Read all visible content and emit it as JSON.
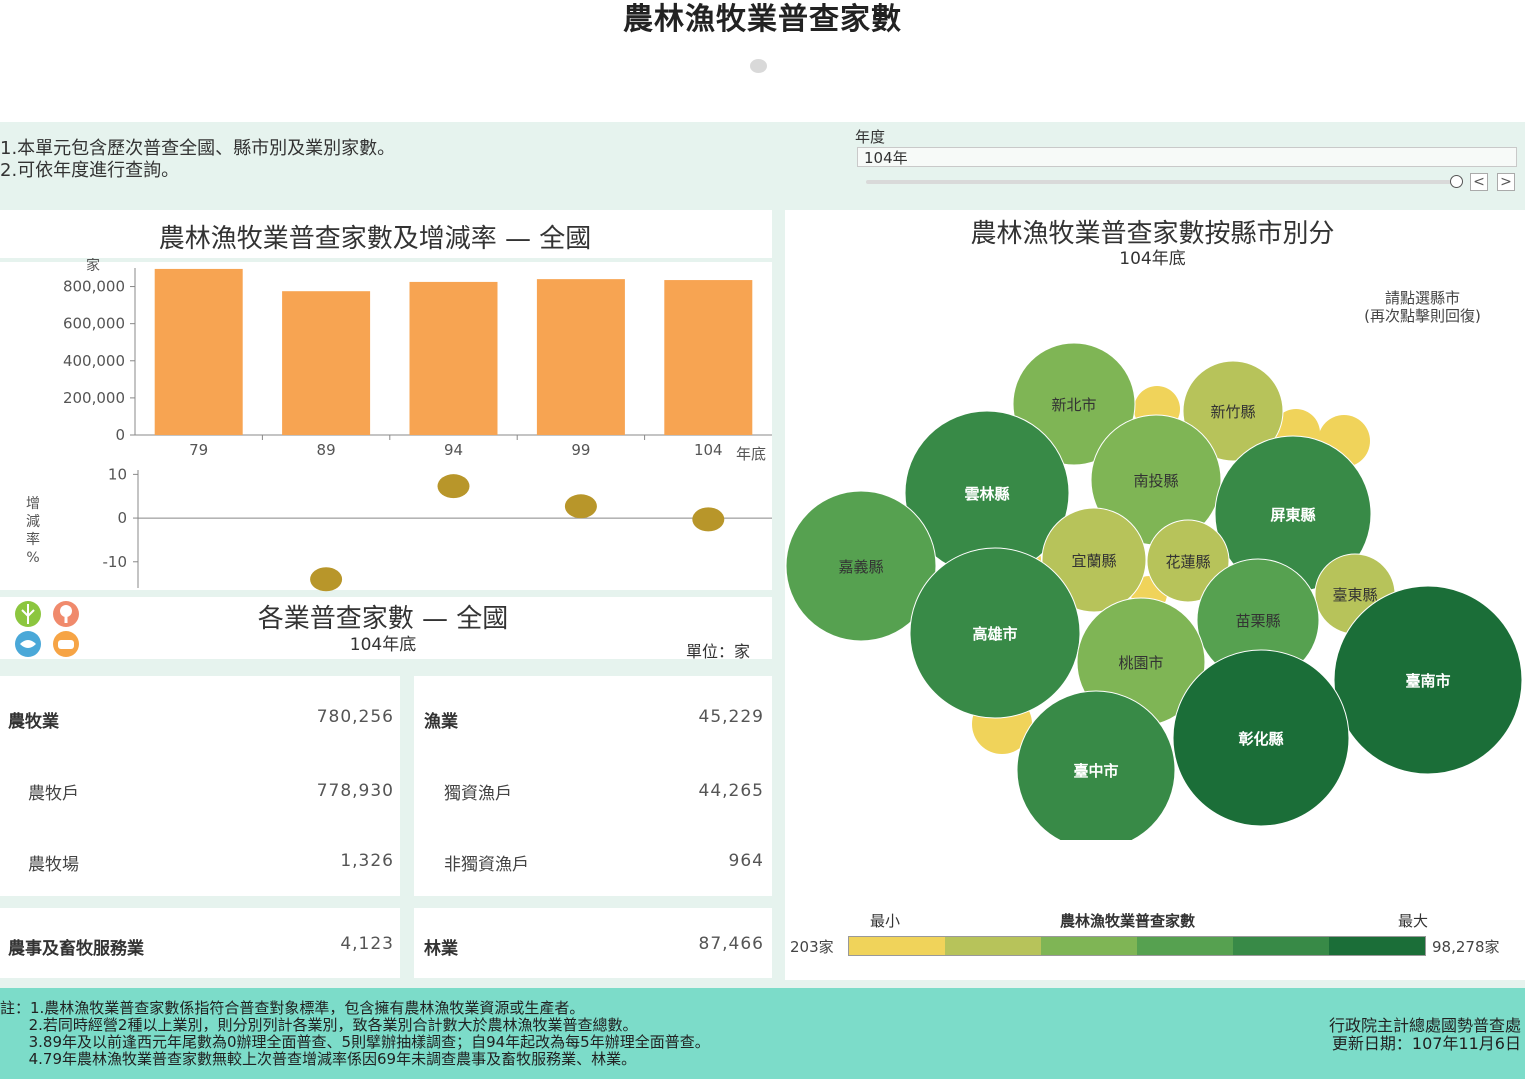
{
  "page": {
    "title": "農林漁牧業普查家數"
  },
  "intro": {
    "line1": "1.本單元包含歷次普查全國、縣市別及業別家數。",
    "line2": "2.可依年度進行查詢。"
  },
  "filter": {
    "label": "年度",
    "value": "104年",
    "prev_label": "<",
    "next_label": ">"
  },
  "bar_chart": {
    "title": "農林漁牧業普查家數及增減率 — 全國",
    "unit_label": "家",
    "x_suffix": "年底",
    "rate_axis_label": [
      "增",
      "減",
      "率",
      "%"
    ]
  },
  "chart_data": [
    {
      "type": "bar",
      "categories": [
        "79",
        "89",
        "94",
        "99",
        "104"
      ],
      "values": [
        895000,
        775000,
        825000,
        840000,
        835000
      ],
      "ylabel": "家",
      "ylim": [
        0,
        900000
      ],
      "yticks": [
        "0",
        "200,000",
        "400,000",
        "600,000",
        "800,000"
      ],
      "color": "#f7a452"
    },
    {
      "type": "scatter",
      "categories": [
        "89",
        "94",
        "99",
        "104"
      ],
      "values": [
        -14,
        7.3,
        2.7,
        -0.3
      ],
      "ylabel": "增減率%",
      "ylim": [
        -16,
        11
      ],
      "yticks": [
        "-10",
        "0",
        "10"
      ],
      "color": "#b8962a"
    },
    {
      "type": "bubble",
      "title": "農林漁牧業普查家數按縣市別分",
      "subtitle": "104年底",
      "min": 203,
      "max": 98278,
      "labels": [
        "新北市",
        "新竹縣",
        "雲林縣",
        "南投縣",
        "屏東縣",
        "嘉義縣",
        "宜蘭縣",
        "花蓮縣",
        "臺東縣",
        "高雄市",
        "苗栗縣",
        "桃園市",
        "臺南市",
        "臺中市",
        "彰化縣"
      ]
    }
  ],
  "bubble_map": {
    "title": "農林漁牧業普查家數按縣市別分",
    "subtitle": "104年底",
    "hint_line1": "請點選縣市",
    "hint_line2": "(再次點擊則回復)",
    "legend": {
      "min_label": "最小",
      "center_label": "農林漁牧業普查家數",
      "max_label": "最大",
      "min_value": "203家",
      "max_value": "98,278家"
    },
    "colors": [
      "#f0d35a",
      "#b7c35a",
      "#7fb555",
      "#56a150",
      "#388a47",
      "#1b6e38"
    ]
  },
  "industry": {
    "title": "各業普查家數 — 全國",
    "subtitle": "104年底",
    "unit": "單位：家",
    "agri": {
      "label": "農牧業",
      "value": "780,256",
      "sub1_label": "農牧戶",
      "sub1_value": "778,930",
      "sub2_label": "農牧場",
      "sub2_value": "1,326"
    },
    "fish": {
      "label": "漁業",
      "value": "45,229",
      "sub1_label": "獨資漁戶",
      "sub1_value": "44,265",
      "sub2_label": "非獨資漁戶",
      "sub2_value": "964"
    },
    "service": {
      "label": "農事及畜牧服務業",
      "value": "4,123"
    },
    "forest": {
      "label": "林業",
      "value": "87,466"
    }
  },
  "footer": {
    "notes": "註：1.農林漁牧業普查家數係指符合普查對象標準，包含擁有農林漁牧業資源或生產者。\n      2.若同時經營2種以上業別，則分別列計各業別，致各業別合計數大於農林漁牧業普查總數。\n      3.89年及以前逢西元年尾數為0辦理全面普查、5則擘辦抽樣調查；自94年起改為每5年辦理全面普查。\n      4.79年農林漁牧業普查家數無較上次普查增減率係因69年未調查農事及畜牧服務業、林業。",
    "agency": "行政院主計總處國勢普查處",
    "updated": "更新日期：107年11月6日"
  }
}
